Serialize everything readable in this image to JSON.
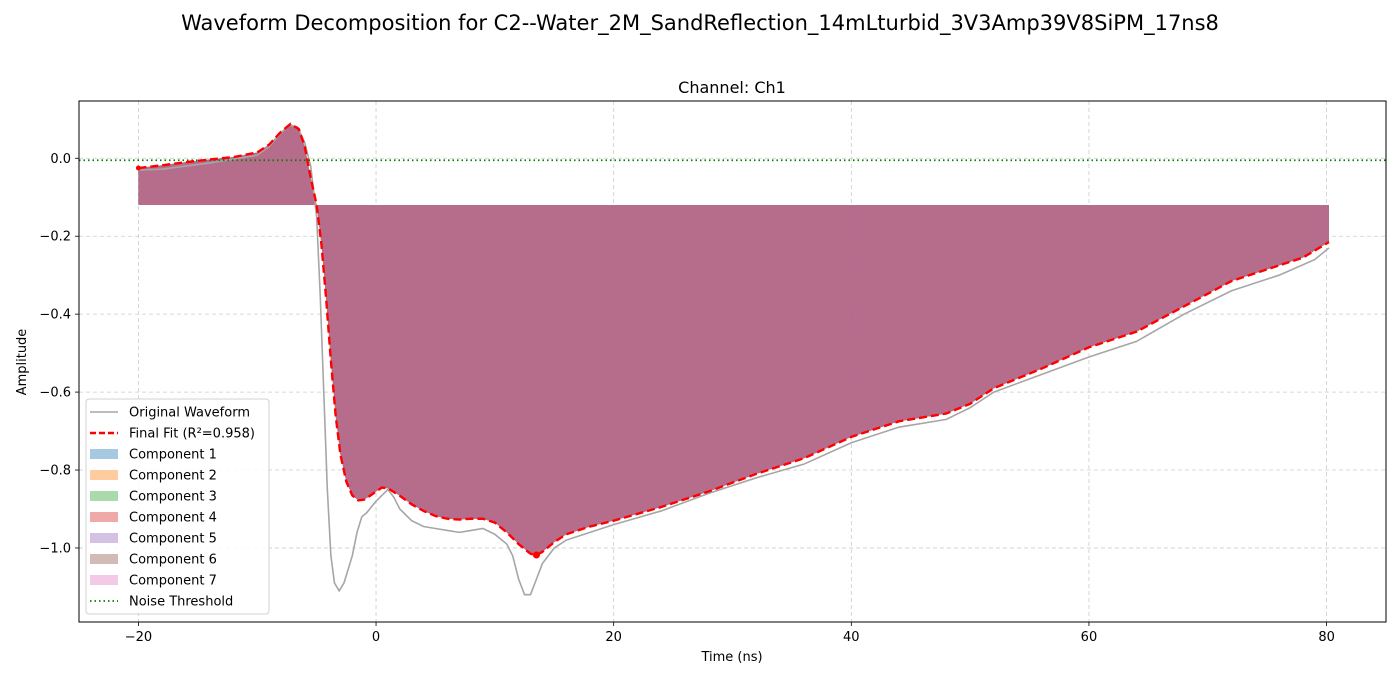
{
  "figure": {
    "suptitle": "Waveform Decomposition for C2--Water_2M_SandReflection_14mLturbid_3V3Amp39V8SiPM_17ns8"
  },
  "chart_data": {
    "type": "line",
    "title": "Channel: Ch1",
    "xlabel": "Time (ns)",
    "ylabel": "Amplitude",
    "xlim": [
      -25,
      85
    ],
    "ylim": [
      -1.19,
      0.147
    ],
    "xticks": [
      -20,
      0,
      20,
      40,
      60,
      80
    ],
    "xtick_labels": [
      "−20",
      "0",
      "20",
      "40",
      "60",
      "80"
    ],
    "yticks": [
      0.0,
      -0.2,
      -0.4,
      -0.6,
      -0.8,
      -1.0
    ],
    "ytick_labels": [
      "0.0",
      "−0.2",
      "−0.4",
      "−0.6",
      "−0.8",
      "−1.0"
    ],
    "grid": true,
    "legend_position": "lower-left",
    "noise_threshold": -0.005,
    "component_baseline": -0.12,
    "x_range": [
      -20,
      80.2
    ],
    "series": [
      {
        "name": "Original Waveform",
        "style": "solid",
        "color": "#a6a6a6",
        "points": [
          [
            -20,
            -0.03
          ],
          [
            -18,
            -0.028
          ],
          [
            -16,
            -0.02
          ],
          [
            -14,
            -0.012
          ],
          [
            -12,
            -0.002
          ],
          [
            -10,
            0.008
          ],
          [
            -9,
            0.03
          ],
          [
            -8,
            0.065
          ],
          [
            -7.3,
            0.085
          ],
          [
            -6.6,
            0.08
          ],
          [
            -6,
            0.04
          ],
          [
            -5.5,
            -0.02
          ],
          [
            -5,
            -0.15
          ],
          [
            -4.7,
            -0.35
          ],
          [
            -4.4,
            -0.6
          ],
          [
            -4.1,
            -0.85
          ],
          [
            -3.8,
            -1.02
          ],
          [
            -3.5,
            -1.09
          ],
          [
            -3.1,
            -1.11
          ],
          [
            -2.7,
            -1.09
          ],
          [
            -2.3,
            -1.05
          ],
          [
            -2,
            -1.02
          ],
          [
            -1.6,
            -0.96
          ],
          [
            -1.2,
            -0.92
          ],
          [
            -0.8,
            -0.91
          ],
          [
            -0.4,
            -0.895
          ],
          [
            0,
            -0.88
          ],
          [
            0.5,
            -0.865
          ],
          [
            1,
            -0.85
          ],
          [
            1.5,
            -0.87
          ],
          [
            2,
            -0.9
          ],
          [
            3,
            -0.93
          ],
          [
            4,
            -0.945
          ],
          [
            5,
            -0.95
          ],
          [
            6,
            -0.955
          ],
          [
            7,
            -0.96
          ],
          [
            8,
            -0.955
          ],
          [
            9,
            -0.95
          ],
          [
            10,
            -0.965
          ],
          [
            11,
            -0.99
          ],
          [
            11.5,
            -1.02
          ],
          [
            12,
            -1.08
          ],
          [
            12.5,
            -1.12
          ],
          [
            13,
            -1.12
          ],
          [
            13.5,
            -1.08
          ],
          [
            14,
            -1.04
          ],
          [
            15,
            -1.0
          ],
          [
            16,
            -0.98
          ],
          [
            18,
            -0.96
          ],
          [
            20,
            -0.94
          ],
          [
            24,
            -0.905
          ],
          [
            28,
            -0.86
          ],
          [
            32,
            -0.82
          ],
          [
            36,
            -0.785
          ],
          [
            40,
            -0.73
          ],
          [
            44,
            -0.69
          ],
          [
            48,
            -0.67
          ],
          [
            50,
            -0.64
          ],
          [
            52,
            -0.6
          ],
          [
            56,
            -0.555
          ],
          [
            60,
            -0.51
          ],
          [
            64,
            -0.47
          ],
          [
            68,
            -0.4
          ],
          [
            72,
            -0.34
          ],
          [
            76,
            -0.3
          ],
          [
            79,
            -0.26
          ],
          [
            80.2,
            -0.23
          ]
        ]
      },
      {
        "name": "Final Fit (R²=0.958)",
        "style": "dashed",
        "color": "#ff0000",
        "points": [
          [
            -20,
            -0.025
          ],
          [
            -18,
            -0.018
          ],
          [
            -16,
            -0.01
          ],
          [
            -14,
            -0.003
          ],
          [
            -12,
            0.003
          ],
          [
            -10,
            0.015
          ],
          [
            -9,
            0.035
          ],
          [
            -8,
            0.068
          ],
          [
            -7.2,
            0.088
          ],
          [
            -6.5,
            0.075
          ],
          [
            -6,
            0.03
          ],
          [
            -5.5,
            -0.05
          ],
          [
            -5,
            -0.12
          ],
          [
            -4.6,
            -0.22
          ],
          [
            -4.2,
            -0.36
          ],
          [
            -3.8,
            -0.52
          ],
          [
            -3.4,
            -0.66
          ],
          [
            -3,
            -0.76
          ],
          [
            -2.5,
            -0.83
          ],
          [
            -2,
            -0.865
          ],
          [
            -1.5,
            -0.878
          ],
          [
            -1,
            -0.876
          ],
          [
            -0.5,
            -0.866
          ],
          [
            0,
            -0.855
          ],
          [
            0.5,
            -0.845
          ],
          [
            1,
            -0.847
          ],
          [
            2,
            -0.866
          ],
          [
            3,
            -0.888
          ],
          [
            4,
            -0.905
          ],
          [
            5,
            -0.918
          ],
          [
            6,
            -0.925
          ],
          [
            7,
            -0.927
          ],
          [
            8,
            -0.925
          ],
          [
            9,
            -0.925
          ],
          [
            10,
            -0.935
          ],
          [
            11,
            -0.96
          ],
          [
            12,
            -0.99
          ],
          [
            13,
            -1.015
          ],
          [
            13.5,
            -1.018
          ],
          [
            14,
            -1.01
          ],
          [
            15,
            -0.985
          ],
          [
            16,
            -0.965
          ],
          [
            18,
            -0.945
          ],
          [
            20,
            -0.93
          ],
          [
            24,
            -0.895
          ],
          [
            28,
            -0.855
          ],
          [
            32,
            -0.81
          ],
          [
            36,
            -0.77
          ],
          [
            40,
            -0.715
          ],
          [
            44,
            -0.675
          ],
          [
            48,
            -0.655
          ],
          [
            50,
            -0.63
          ],
          [
            52,
            -0.59
          ],
          [
            56,
            -0.54
          ],
          [
            60,
            -0.485
          ],
          [
            64,
            -0.445
          ],
          [
            68,
            -0.38
          ],
          [
            72,
            -0.315
          ],
          [
            76,
            -0.275
          ],
          [
            78,
            -0.255
          ],
          [
            80.2,
            -0.215
          ]
        ]
      }
    ],
    "components": [
      {
        "name": "Component 1",
        "color": "#1f77b4",
        "opacity": 0.4
      },
      {
        "name": "Component 2",
        "color": "#ff7f0e",
        "opacity": 0.4
      },
      {
        "name": "Component 3",
        "color": "#2ca02c",
        "opacity": 0.4
      },
      {
        "name": "Component 4",
        "color": "#d62728",
        "opacity": 0.4
      },
      {
        "name": "Component 5",
        "color": "#9467bd",
        "opacity": 0.4
      },
      {
        "name": "Component 6",
        "color": "#8c564b",
        "opacity": 0.4
      },
      {
        "name": "Component 7",
        "color": "#e377c2",
        "opacity": 0.4
      }
    ],
    "noise_threshold_label": "Noise Threshold",
    "colors": {
      "noise_threshold": "#008000",
      "grid": "#cccccc",
      "peak_marker": "#ff0000"
    }
  }
}
